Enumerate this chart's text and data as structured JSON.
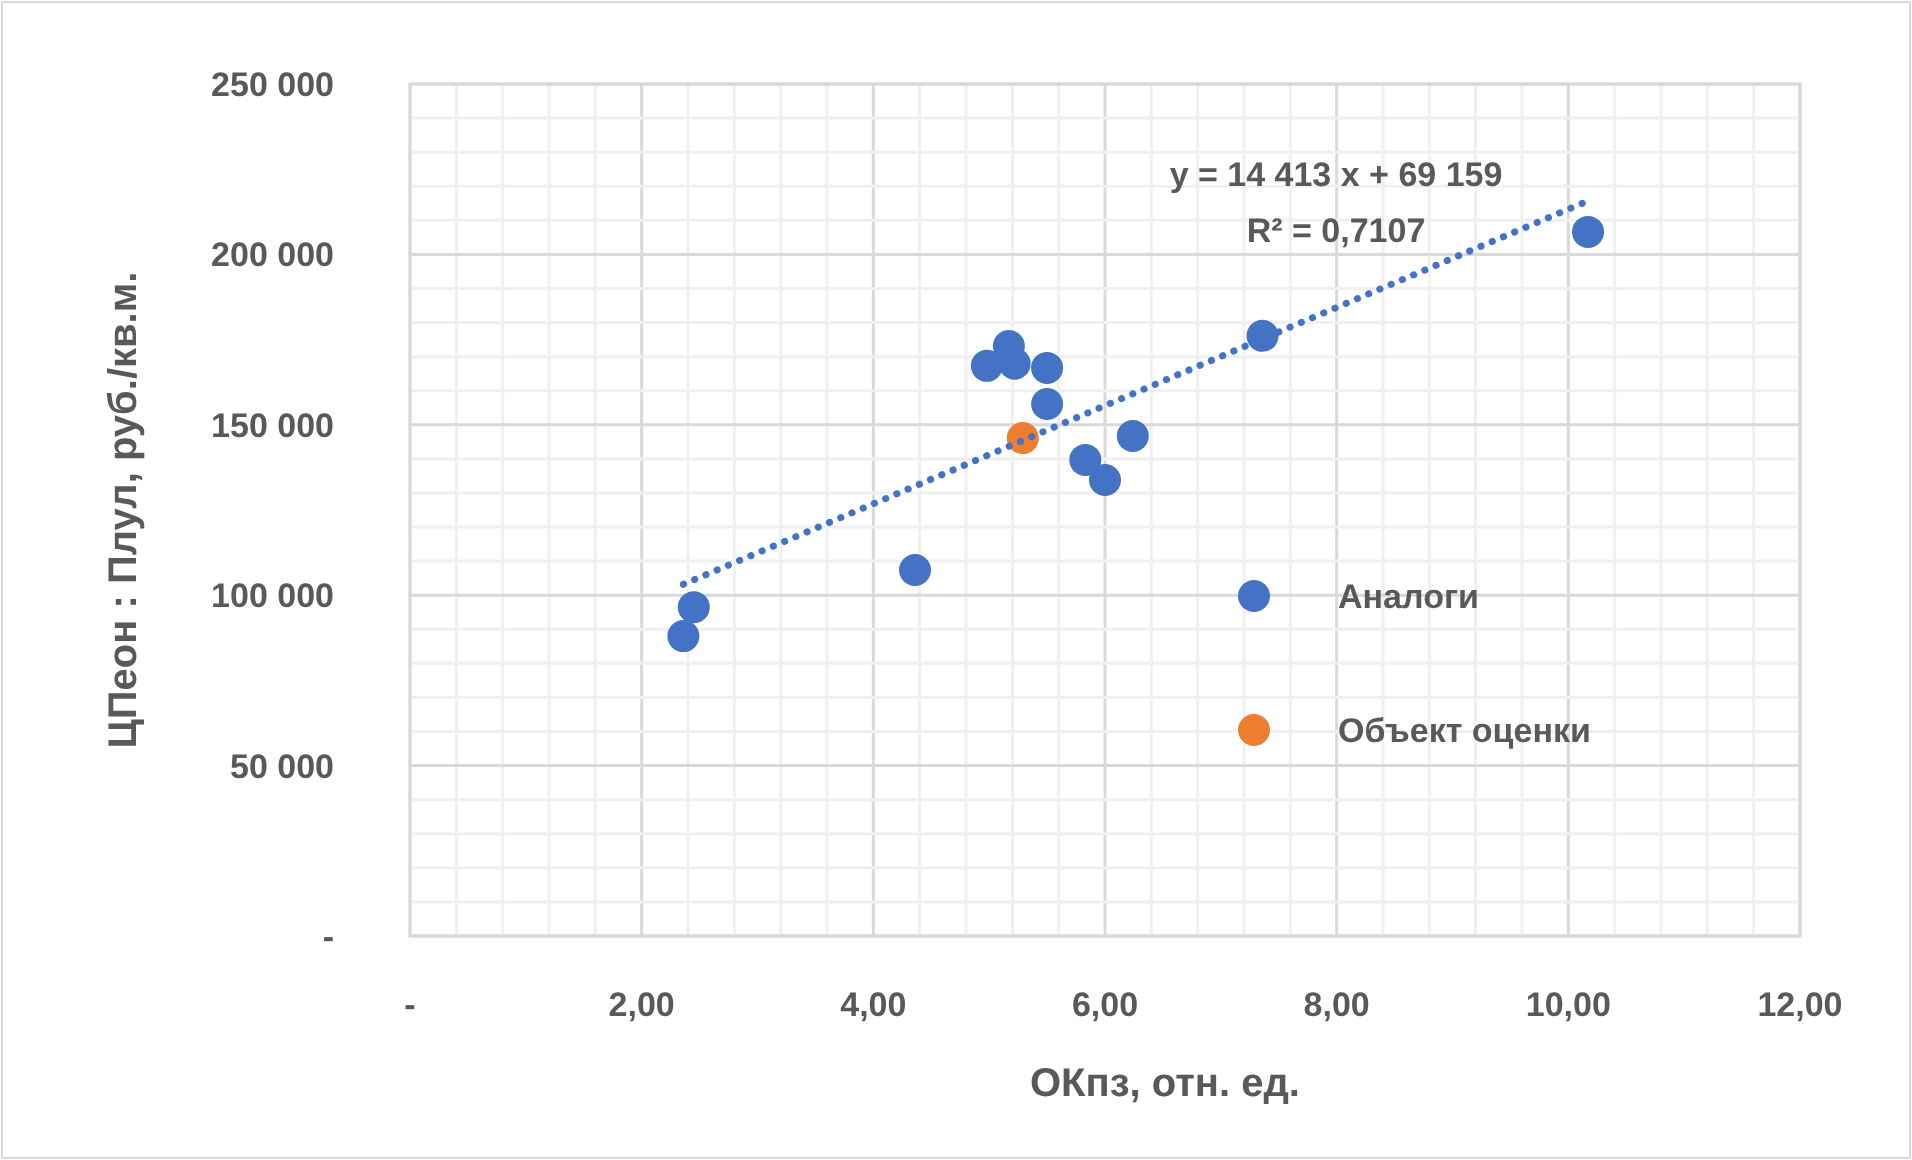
{
  "chart_data": {
    "type": "scatter",
    "xlabel": "ОКпз, отн. ед.",
    "ylabel": "ЦПеон : Плул, руб./кв.м.",
    "xlim": [
      0,
      12
    ],
    "xticks": [
      {
        "value": 0,
        "label": "-"
      },
      {
        "value": 2,
        "label": "2,00"
      },
      {
        "value": 4,
        "label": "4,00"
      },
      {
        "value": 6,
        "label": "6,00"
      },
      {
        "value": 8,
        "label": "8,00"
      },
      {
        "value": 10,
        "label": "10,00"
      },
      {
        "value": 12,
        "label": "12,00"
      }
    ],
    "ylim": [
      0,
      250000
    ],
    "yticks": [
      {
        "value": 0,
        "label": "-"
      },
      {
        "value": 50000,
        "label": "50 000"
      },
      {
        "value": 100000,
        "label": "100 000"
      },
      {
        "value": 150000,
        "label": "150 000"
      },
      {
        "value": 200000,
        "label": "200 000"
      },
      {
        "value": 250000,
        "label": "250 000"
      }
    ],
    "grid": true,
    "legend": "right",
    "marker": "circle",
    "series": [
      {
        "name": "Аналоги",
        "color": "#4472c4",
        "x": [
          2.36,
          2.45,
          4.36,
          4.98,
          5.17,
          5.22,
          5.5,
          5.5,
          5.83,
          6.0,
          6.24,
          7.36,
          10.17
        ],
        "values": [
          88000,
          96500,
          107400,
          167300,
          173100,
          167900,
          166700,
          156100,
          139700,
          133800,
          146700,
          176100,
          206600
        ]
      },
      {
        "name": "Объект оценки",
        "color": "#ed7d31",
        "x": [
          5.29
        ],
        "values": [
          146100
        ]
      },
      {
        "type": "line",
        "color": "#4472c4",
        "line_style": "dotted",
        "marker": "none",
        "x": [
          2.36,
          10.17
        ],
        "values": [
          103200,
          215700
        ]
      }
    ],
    "annotations": [
      "y = 14 413 x + 69 159",
      "R² = 0,7107"
    ]
  }
}
